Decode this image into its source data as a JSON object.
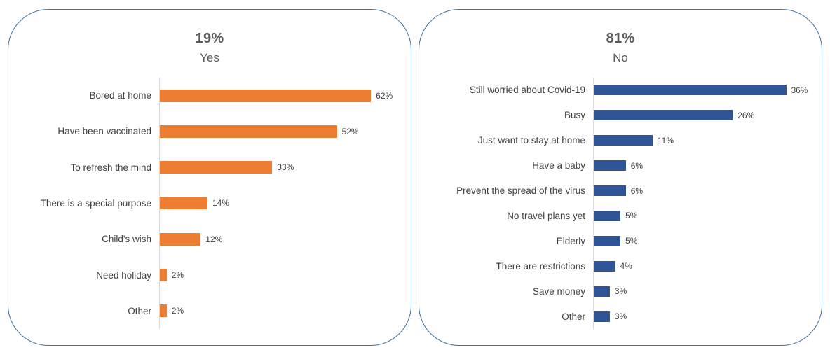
{
  "chart_data": [
    {
      "type": "bar",
      "orientation": "horizontal",
      "title": "19%",
      "subtitle": "Yes",
      "bar_color": "#ED7D31",
      "axis_max": 70,
      "grid": false,
      "legend": false,
      "categories": [
        "Bored at home",
        "Have been vaccinated",
        "To refresh the mind",
        "There is a special purpose",
        "Child's wish",
        "Need holiday",
        "Other"
      ],
      "values": [
        62,
        52,
        33,
        14,
        12,
        2,
        2
      ],
      "data_labels": [
        "62%",
        "52%",
        "33%",
        "14%",
        "12%",
        "2%",
        "2%"
      ]
    },
    {
      "type": "bar",
      "orientation": "horizontal",
      "title": "81%",
      "subtitle": "No",
      "bar_color": "#2F5597",
      "axis_max": 40,
      "grid": false,
      "legend": false,
      "categories": [
        "Still worried about Covid-19",
        "Busy",
        "Just want to stay at home",
        "Have a baby",
        "Prevent the spread of the virus",
        "No travel plans yet",
        "Elderly",
        "There are restrictions",
        "Save money",
        "Other"
      ],
      "values": [
        36,
        26,
        11,
        6,
        6,
        5,
        5,
        4,
        3,
        3
      ],
      "data_labels": [
        "36%",
        "26%",
        "11%",
        "6%",
        "6%",
        "5%",
        "5%",
        "4%",
        "3%",
        "3%"
      ]
    }
  ],
  "colors": {
    "yes_bar": "#ED7D31",
    "no_bar": "#2F5597",
    "card_border": "#41719C",
    "axis_line": "#D9D9D9",
    "title_text": "#595959",
    "label_text": "#404040"
  }
}
